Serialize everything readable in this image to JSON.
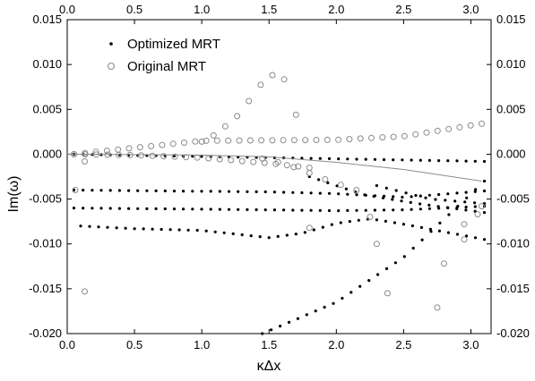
{
  "chart_data": {
    "type": "scatter",
    "xlabel": "κΔx",
    "ylabel": "Im(ω)",
    "xlim": [
      0,
      3.15
    ],
    "ylim": [
      -0.02,
      0.015
    ],
    "x_ticks": [
      "0.0",
      "0.5",
      "1.0",
      "1.5",
      "2.0",
      "2.5",
      "3.0"
    ],
    "x_tick_values": [
      0,
      0.5,
      1.0,
      1.5,
      2.0,
      2.5,
      3.0
    ],
    "y_ticks": [
      "0.015",
      "0.010",
      "0.005",
      "0.000",
      "-0.005",
      "-0.010",
      "-0.015",
      "-0.020"
    ],
    "y_tick_values": [
      0.015,
      0.01,
      0.005,
      0.0,
      -0.005,
      -0.01,
      -0.015,
      -0.02
    ],
    "mirror_axes": true,
    "grid": false,
    "legend_position": "top-left",
    "series": [
      {
        "name": "Optimized MRT",
        "marker": "filled-dot",
        "color": "#000000",
        "branches": [
          {
            "x": [
              0.05,
              3.1
            ],
            "y": [
              0.0,
              -0.0008
            ],
            "n": 46
          },
          {
            "x": [
              0.05,
              1.5,
              2.0,
              2.5,
              3.1
            ],
            "y": [
              -0.004,
              -0.0042,
              -0.0044,
              -0.0048,
              -0.0041
            ],
            "n": 46
          },
          {
            "x": [
              0.05,
              1.5,
              2.0,
              2.5,
              3.1
            ],
            "y": [
              -0.006,
              -0.0062,
              -0.0063,
              -0.0062,
              -0.0058
            ],
            "n": 46
          },
          {
            "x": [
              0.1,
              0.5,
              1.0,
              1.5,
              1.75,
              2.0,
              2.25,
              2.5,
              3.1
            ],
            "y": [
              -0.008,
              -0.0083,
              -0.0085,
              -0.0093,
              -0.0088,
              -0.0077,
              -0.0072,
              -0.0078,
              -0.0095
            ],
            "n": 46
          },
          {
            "x": [
              1.45,
              2.0,
              2.5,
              3.1
            ],
            "y": [
              -0.02,
              -0.0165,
              -0.0115,
              -0.003
            ],
            "n": 26
          },
          {
            "x": [
              1.8,
              2.2,
              2.6,
              3.1
            ],
            "y": [
              -0.0025,
              -0.0045,
              -0.0055,
              -0.0065
            ],
            "n": 20
          },
          {
            "x": [
              2.3,
              2.7,
              3.1
            ],
            "y": [
              -0.0035,
              -0.005,
              -0.0055
            ],
            "n": 12
          }
        ]
      },
      {
        "name": "Original MRT",
        "marker": "open-circle",
        "color": "#8a8a8a",
        "branches": [
          {
            "x": [
              0.05,
              1.0,
              2.0,
              2.5,
              3.08
            ],
            "y": [
              0.0,
              0.0015,
              0.0016,
              0.002,
              0.0034
            ],
            "n": 38
          },
          {
            "x": [
              1.0,
              1.1,
              1.25,
              1.38,
              1.45,
              1.52,
              1.58,
              1.65,
              1.7
            ],
            "y": [
              0.0014,
              0.0022,
              0.004,
              0.0065,
              0.008,
              0.0088,
              0.009,
              0.0076,
              0.0044
            ],
            "n": 9
          },
          {
            "x": [
              0.05,
              0.5,
              1.0,
              1.5,
              1.8
            ],
            "y": [
              0.0,
              -0.0001,
              -0.0004,
              -0.001,
              -0.0015
            ],
            "n": 22
          },
          {
            "x": [
              1.45,
              1.6,
              1.75,
              1.95,
              2.15
            ],
            "y": [
              -0.0005,
              -0.001,
              -0.0018,
              -0.003,
              -0.004
            ],
            "n": 7
          }
        ],
        "points": [
          [
            0.06,
            -0.004
          ],
          [
            0.13,
            -0.0153
          ],
          [
            0.13,
            -0.0008
          ],
          [
            1.8,
            -0.0082
          ],
          [
            2.25,
            -0.007
          ],
          [
            2.3,
            -0.01
          ],
          [
            2.38,
            -0.0155
          ],
          [
            2.75,
            -0.0171
          ],
          [
            2.8,
            -0.0122
          ],
          [
            2.95,
            -0.0095
          ],
          [
            2.95,
            -0.0078
          ],
          [
            3.08,
            -0.0058
          ],
          [
            3.05,
            -0.0067
          ]
        ]
      },
      {
        "name": "",
        "marker": "line",
        "color": "#8a8a8a",
        "x": [
          0.0,
          1.0,
          1.5,
          2.0,
          2.5,
          3.08
        ],
        "y": [
          0.0,
          -0.0001,
          -0.0003,
          -0.0009,
          -0.0017,
          -0.003
        ]
      }
    ]
  }
}
